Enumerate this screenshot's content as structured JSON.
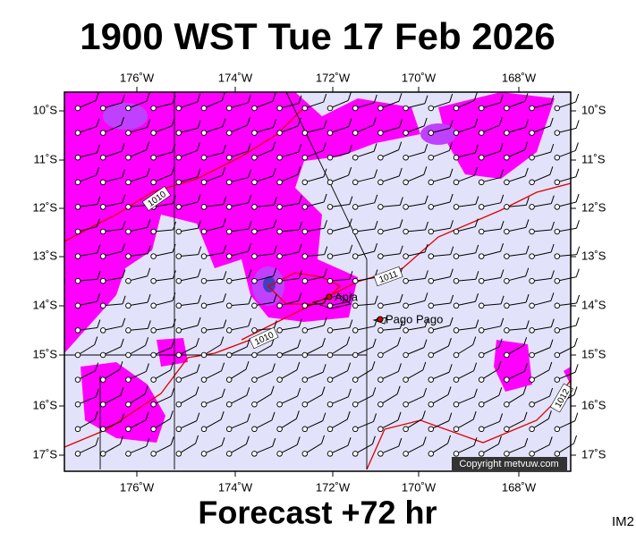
{
  "header": {
    "title": "1900 WST Tue 17 Feb 2026"
  },
  "map": {
    "longitudes": [
      "176˚W",
      "174˚W",
      "172˚W",
      "170˚W",
      "168˚W"
    ],
    "latitudes": [
      "10˚S",
      "11˚S",
      "12˚S",
      "13˚S",
      "14˚S",
      "15˚S",
      "16˚S",
      "17˚S"
    ],
    "places": [
      "Apia",
      "Pago Pago"
    ],
    "isobars": [
      "1010",
      "1011",
      "1010",
      "1012"
    ],
    "copyright": "Copyright metvuw.com"
  },
  "footer": {
    "forecast": "Forecast +72 hr",
    "image": "IM2"
  }
}
